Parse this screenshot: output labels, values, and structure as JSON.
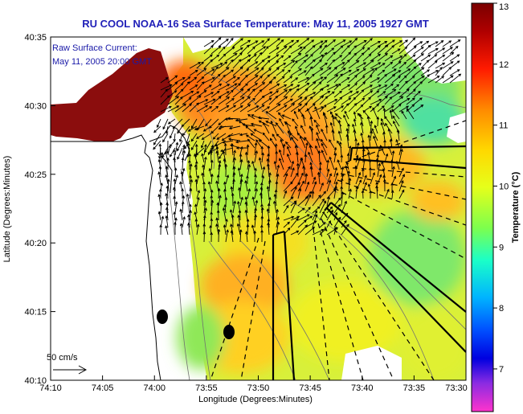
{
  "title": "RU COOL  NOAA-16  Sea Surface Temperature:  May 11, 2005 1927 GMT",
  "legend": {
    "line1": "Raw Surface Current:",
    "line2": "May 11, 2005 20:00 GMT",
    "scale_label": "50 cm/s"
  },
  "axes": {
    "xlabel": "Longitude (Degrees:Minutes)",
    "ylabel": "Latitude (Degrees:Minutes)",
    "xticks": [
      "74:10",
      "74:05",
      "74:00",
      "73:55",
      "73:50",
      "73:45",
      "73:40",
      "73:35",
      "73:30"
    ],
    "yticks": [
      "40:35",
      "40:30",
      "40:25",
      "40:20",
      "40:15",
      "40:10"
    ]
  },
  "colorbar": {
    "label": "Temperature (°C)",
    "ticks": [
      "13",
      "12",
      "11",
      "10",
      "9",
      "8",
      "7"
    ]
  },
  "chart_data": {
    "type": "heatmap",
    "title": "RU COOL  NOAA-16  Sea Surface Temperature:  May 11, 2005 1927 GMT",
    "xlabel": "Longitude (Degrees:Minutes)",
    "ylabel": "Latitude (Degrees:Minutes)",
    "xlim": [
      "74:10",
      "73:30"
    ],
    "ylim": [
      "40:10",
      "40:35"
    ],
    "color_range_c": [
      6.3,
      13
    ],
    "colors": {
      "land": "#ffffff",
      "coast": "#000000",
      "arrows": "#000000",
      "title": "#1f1fb8"
    }
  }
}
